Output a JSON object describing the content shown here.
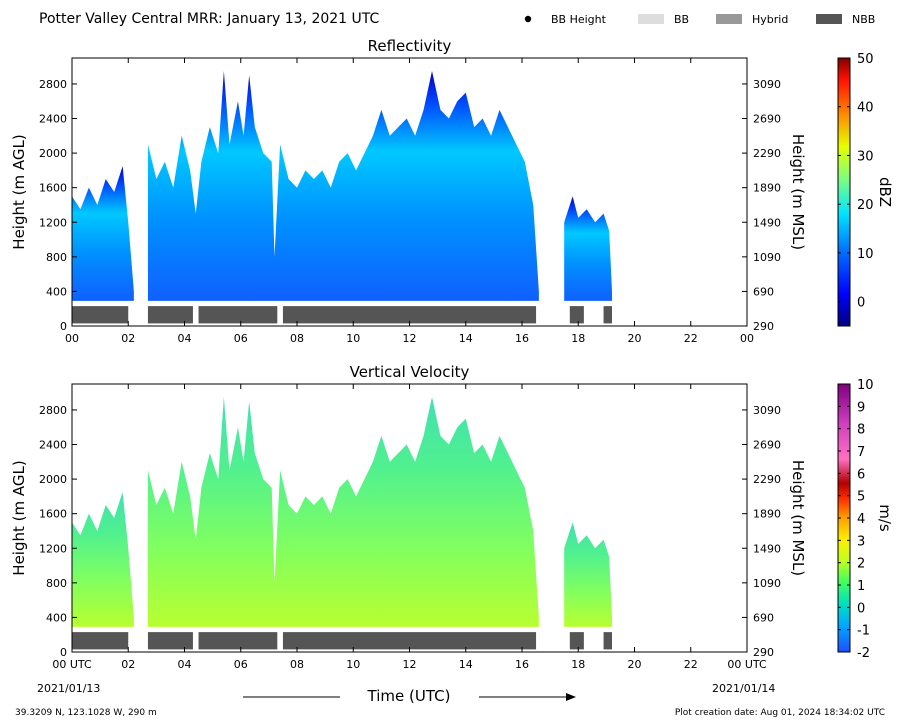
{
  "header": {
    "title": "Potter Valley Central MRR:  January 13, 2021 UTC",
    "legend": [
      {
        "label": "BB Height",
        "kind": "dot",
        "color": "#000000"
      },
      {
        "label": "BB",
        "kind": "box",
        "color": "#dddddd"
      },
      {
        "label": "Hybrid",
        "kind": "box",
        "color": "#999999"
      },
      {
        "label": "NBB",
        "kind": "box",
        "color": "#555555"
      }
    ]
  },
  "footer": {
    "location": "39.3209 N, 123.1028 W, 290 m",
    "created": "Plot creation date: Aug 01, 2024 18:34:02 UTC",
    "xlabel": "Time (UTC)",
    "start_date": "2021/01/13",
    "end_date": "2021/01/14"
  },
  "chart_data": [
    {
      "type": "heatmap",
      "title": "Reflectivity",
      "ylabel": "Height (m AGL)",
      "y2label": "Height (m MSL)",
      "xlim": [
        0,
        24
      ],
      "ylim": [
        0,
        3100
      ],
      "y2lim": [
        290,
        3390
      ],
      "x_ticks": [
        "00",
        "02",
        "04",
        "06",
        "08",
        "10",
        "12",
        "14",
        "16",
        "18",
        "20",
        "22",
        "00"
      ],
      "y_ticks": [
        0,
        400,
        800,
        1200,
        1600,
        2000,
        2400,
        2800
      ],
      "y2_ticks": [
        290,
        690,
        1090,
        1490,
        1890,
        2290,
        2690,
        3090
      ],
      "colorbar": {
        "label": "dBZ",
        "min": -5,
        "max": 50,
        "ticks": [
          0,
          10,
          20,
          30,
          40,
          50
        ]
      },
      "echo_top_heights": [
        [
          0.0,
          1500
        ],
        [
          0.3,
          1350
        ],
        [
          0.6,
          1600
        ],
        [
          0.9,
          1400
        ],
        [
          1.2,
          1700
        ],
        [
          1.5,
          1550
        ],
        [
          1.8,
          1850
        ],
        [
          2.0,
          1200
        ],
        [
          2.2,
          400
        ],
        [
          2.7,
          2100
        ],
        [
          3.0,
          1700
        ],
        [
          3.3,
          1900
        ],
        [
          3.6,
          1600
        ],
        [
          3.9,
          2200
        ],
        [
          4.2,
          1800
        ],
        [
          4.4,
          1300
        ],
        [
          4.6,
          1900
        ],
        [
          4.9,
          2300
        ],
        [
          5.2,
          2000
        ],
        [
          5.4,
          2950
        ],
        [
          5.6,
          2100
        ],
        [
          5.9,
          2600
        ],
        [
          6.1,
          2200
        ],
        [
          6.3,
          2900
        ],
        [
          6.5,
          2300
        ],
        [
          6.8,
          2000
        ],
        [
          7.1,
          1900
        ],
        [
          7.2,
          800
        ],
        [
          7.4,
          2100
        ],
        [
          7.7,
          1700
        ],
        [
          8.0,
          1600
        ],
        [
          8.3,
          1800
        ],
        [
          8.6,
          1700
        ],
        [
          8.9,
          1800
        ],
        [
          9.2,
          1600
        ],
        [
          9.5,
          1900
        ],
        [
          9.8,
          2000
        ],
        [
          10.1,
          1800
        ],
        [
          10.4,
          2000
        ],
        [
          10.7,
          2200
        ],
        [
          11.0,
          2500
        ],
        [
          11.3,
          2200
        ],
        [
          11.6,
          2300
        ],
        [
          11.9,
          2400
        ],
        [
          12.2,
          2200
        ],
        [
          12.5,
          2500
        ],
        [
          12.8,
          2950
        ],
        [
          13.1,
          2500
        ],
        [
          13.4,
          2400
        ],
        [
          13.7,
          2600
        ],
        [
          14.0,
          2700
        ],
        [
          14.3,
          2300
        ],
        [
          14.6,
          2400
        ],
        [
          14.9,
          2200
        ],
        [
          15.2,
          2500
        ],
        [
          15.5,
          2300
        ],
        [
          15.8,
          2100
        ],
        [
          16.1,
          1900
        ],
        [
          16.4,
          1400
        ],
        [
          16.6,
          400
        ],
        [
          17.0,
          1100
        ],
        [
          17.5,
          1200
        ],
        [
          17.8,
          1500
        ],
        [
          18.0,
          1250
        ],
        [
          18.3,
          1350
        ],
        [
          18.6,
          1200
        ],
        [
          18.9,
          1300
        ],
        [
          19.1,
          1100
        ],
        [
          19.2,
          400
        ]
      ],
      "precip_type_bars": [
        {
          "type": "NBB",
          "start": 0.0,
          "end": 2.0
        },
        {
          "type": "NBB",
          "start": 2.7,
          "end": 4.3
        },
        {
          "type": "NBB",
          "start": 4.5,
          "end": 7.3
        },
        {
          "type": "NBB",
          "start": 7.5,
          "end": 16.5
        },
        {
          "type": "NBB",
          "start": 17.7,
          "end": 18.2
        },
        {
          "type": "NBB",
          "start": 18.9,
          "end": 19.2
        }
      ]
    },
    {
      "type": "heatmap",
      "title": "Vertical Velocity",
      "ylabel": "Height (m AGL)",
      "y2label": "Height (m MSL)",
      "xlim": [
        0,
        24
      ],
      "ylim": [
        0,
        3100
      ],
      "y2lim": [
        290,
        3390
      ],
      "x_ticks": [
        "00 UTC",
        "02",
        "04",
        "06",
        "08",
        "10",
        "12",
        "14",
        "16",
        "18",
        "20",
        "22",
        "00 UTC"
      ],
      "y_ticks": [
        0,
        400,
        800,
        1200,
        1600,
        2000,
        2400,
        2800
      ],
      "y2_ticks": [
        290,
        690,
        1090,
        1490,
        1890,
        2290,
        2690,
        3090
      ],
      "colorbar": {
        "label": "m/s",
        "min": -2,
        "max": 10,
        "ticks": [
          -2,
          -1,
          0,
          1,
          2,
          3,
          4,
          5,
          6,
          7,
          8,
          9,
          10
        ]
      },
      "echo_top_heights": [
        [
          0.0,
          1500
        ],
        [
          0.3,
          1350
        ],
        [
          0.6,
          1600
        ],
        [
          0.9,
          1400
        ],
        [
          1.2,
          1700
        ],
        [
          1.5,
          1550
        ],
        [
          1.8,
          1850
        ],
        [
          2.0,
          1200
        ],
        [
          2.2,
          400
        ],
        [
          2.7,
          2100
        ],
        [
          3.0,
          1700
        ],
        [
          3.3,
          1900
        ],
        [
          3.6,
          1600
        ],
        [
          3.9,
          2200
        ],
        [
          4.2,
          1800
        ],
        [
          4.4,
          1300
        ],
        [
          4.6,
          1900
        ],
        [
          4.9,
          2300
        ],
        [
          5.2,
          2000
        ],
        [
          5.4,
          2950
        ],
        [
          5.6,
          2100
        ],
        [
          5.9,
          2600
        ],
        [
          6.1,
          2200
        ],
        [
          6.3,
          2900
        ],
        [
          6.5,
          2300
        ],
        [
          6.8,
          2000
        ],
        [
          7.1,
          1900
        ],
        [
          7.2,
          800
        ],
        [
          7.4,
          2100
        ],
        [
          7.7,
          1700
        ],
        [
          8.0,
          1600
        ],
        [
          8.3,
          1800
        ],
        [
          8.6,
          1700
        ],
        [
          8.9,
          1800
        ],
        [
          9.2,
          1600
        ],
        [
          9.5,
          1900
        ],
        [
          9.8,
          2000
        ],
        [
          10.1,
          1800
        ],
        [
          10.4,
          2000
        ],
        [
          10.7,
          2200
        ],
        [
          11.0,
          2500
        ],
        [
          11.3,
          2200
        ],
        [
          11.6,
          2300
        ],
        [
          11.9,
          2400
        ],
        [
          12.2,
          2200
        ],
        [
          12.5,
          2500
        ],
        [
          12.8,
          2950
        ],
        [
          13.1,
          2500
        ],
        [
          13.4,
          2400
        ],
        [
          13.7,
          2600
        ],
        [
          14.0,
          2700
        ],
        [
          14.3,
          2300
        ],
        [
          14.6,
          2400
        ],
        [
          14.9,
          2200
        ],
        [
          15.2,
          2500
        ],
        [
          15.5,
          2300
        ],
        [
          15.8,
          2100
        ],
        [
          16.1,
          1900
        ],
        [
          16.4,
          1400
        ],
        [
          16.6,
          400
        ],
        [
          17.0,
          1100
        ],
        [
          17.5,
          1200
        ],
        [
          17.8,
          1500
        ],
        [
          18.0,
          1250
        ],
        [
          18.3,
          1350
        ],
        [
          18.6,
          1200
        ],
        [
          18.9,
          1300
        ],
        [
          19.1,
          1100
        ],
        [
          19.2,
          400
        ]
      ],
      "precip_type_bars": [
        {
          "type": "NBB",
          "start": 0.0,
          "end": 2.0
        },
        {
          "type": "NBB",
          "start": 2.7,
          "end": 4.3
        },
        {
          "type": "NBB",
          "start": 4.5,
          "end": 7.3
        },
        {
          "type": "NBB",
          "start": 7.5,
          "end": 16.5
        },
        {
          "type": "NBB",
          "start": 17.7,
          "end": 18.2
        },
        {
          "type": "NBB",
          "start": 18.9,
          "end": 19.2
        }
      ]
    }
  ]
}
